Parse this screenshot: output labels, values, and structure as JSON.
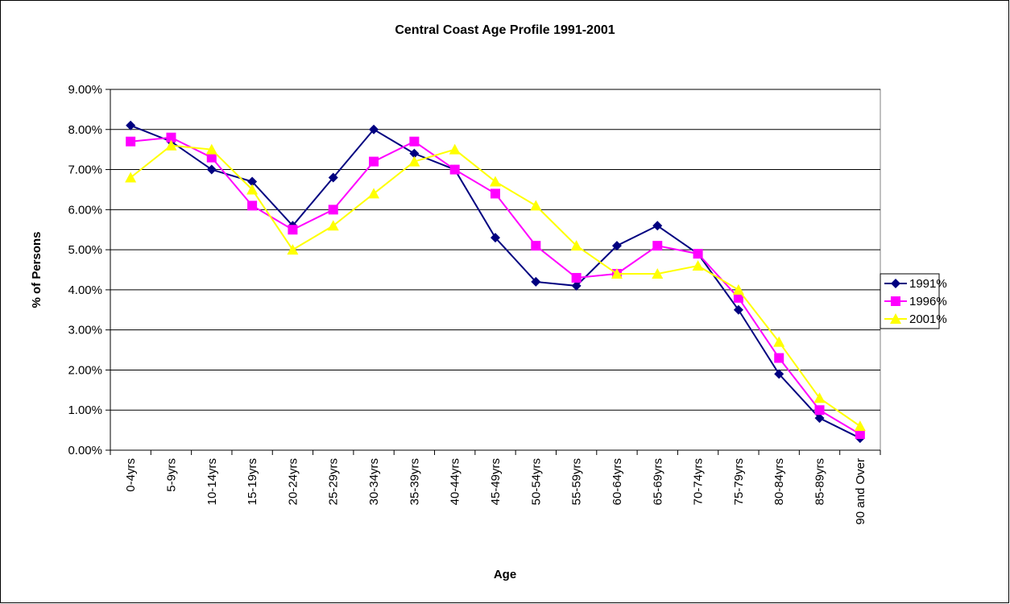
{
  "chart_data": {
    "type": "line",
    "title": "Central Coast Age Profile 1991-2001",
    "xlabel": "Age",
    "ylabel": "% of Persons",
    "categories": [
      "0-4yrs",
      "5-9yrs",
      "10-14yrs",
      "15-19yrs",
      "20-24yrs",
      "25-29yrs",
      "30-34yrs",
      "35-39yrs",
      "40-44yrs",
      "45-49yrs",
      "50-54yrs",
      "55-59yrs",
      "60-64yrs",
      "65-69yrs",
      "70-74yrs",
      "75-79yrs",
      "80-84yrs",
      "85-89yrs",
      "90 and Over"
    ],
    "series": [
      {
        "name": "1991%",
        "color": "#000080",
        "marker": "diamond",
        "values": [
          8.1,
          7.7,
          7.0,
          6.7,
          5.6,
          6.8,
          8.0,
          7.4,
          7.0,
          5.3,
          4.2,
          4.1,
          5.1,
          5.6,
          4.9,
          3.5,
          1.9,
          0.8,
          0.3
        ]
      },
      {
        "name": "1996%",
        "color": "#ff00ff",
        "marker": "square",
        "values": [
          7.7,
          7.8,
          7.3,
          6.1,
          5.5,
          6.0,
          7.2,
          7.7,
          7.0,
          6.4,
          5.1,
          4.3,
          4.4,
          5.1,
          4.9,
          3.8,
          2.3,
          1.0,
          0.4
        ]
      },
      {
        "name": "2001%",
        "color": "#ffff00",
        "marker": "triangle",
        "values": [
          6.8,
          7.6,
          7.5,
          6.5,
          5.0,
          5.6,
          6.4,
          7.2,
          7.5,
          6.7,
          6.1,
          5.1,
          4.4,
          4.4,
          4.6,
          4.0,
          2.7,
          1.3,
          0.6
        ]
      }
    ],
    "ylim": [
      0,
      9
    ],
    "yticks": [
      {
        "value": 0,
        "label": "0.00%"
      },
      {
        "value": 1,
        "label": "1.00%"
      },
      {
        "value": 2,
        "label": "2.00%"
      },
      {
        "value": 3,
        "label": "3.00%"
      },
      {
        "value": 4,
        "label": "4.00%"
      },
      {
        "value": 5,
        "label": "5.00%"
      },
      {
        "value": 6,
        "label": "6.00%"
      },
      {
        "value": 7,
        "label": "7.00%"
      },
      {
        "value": 8,
        "label": "8.00%"
      },
      {
        "value": 9,
        "label": "9.00%"
      }
    ],
    "grid": true,
    "legend": "right"
  }
}
